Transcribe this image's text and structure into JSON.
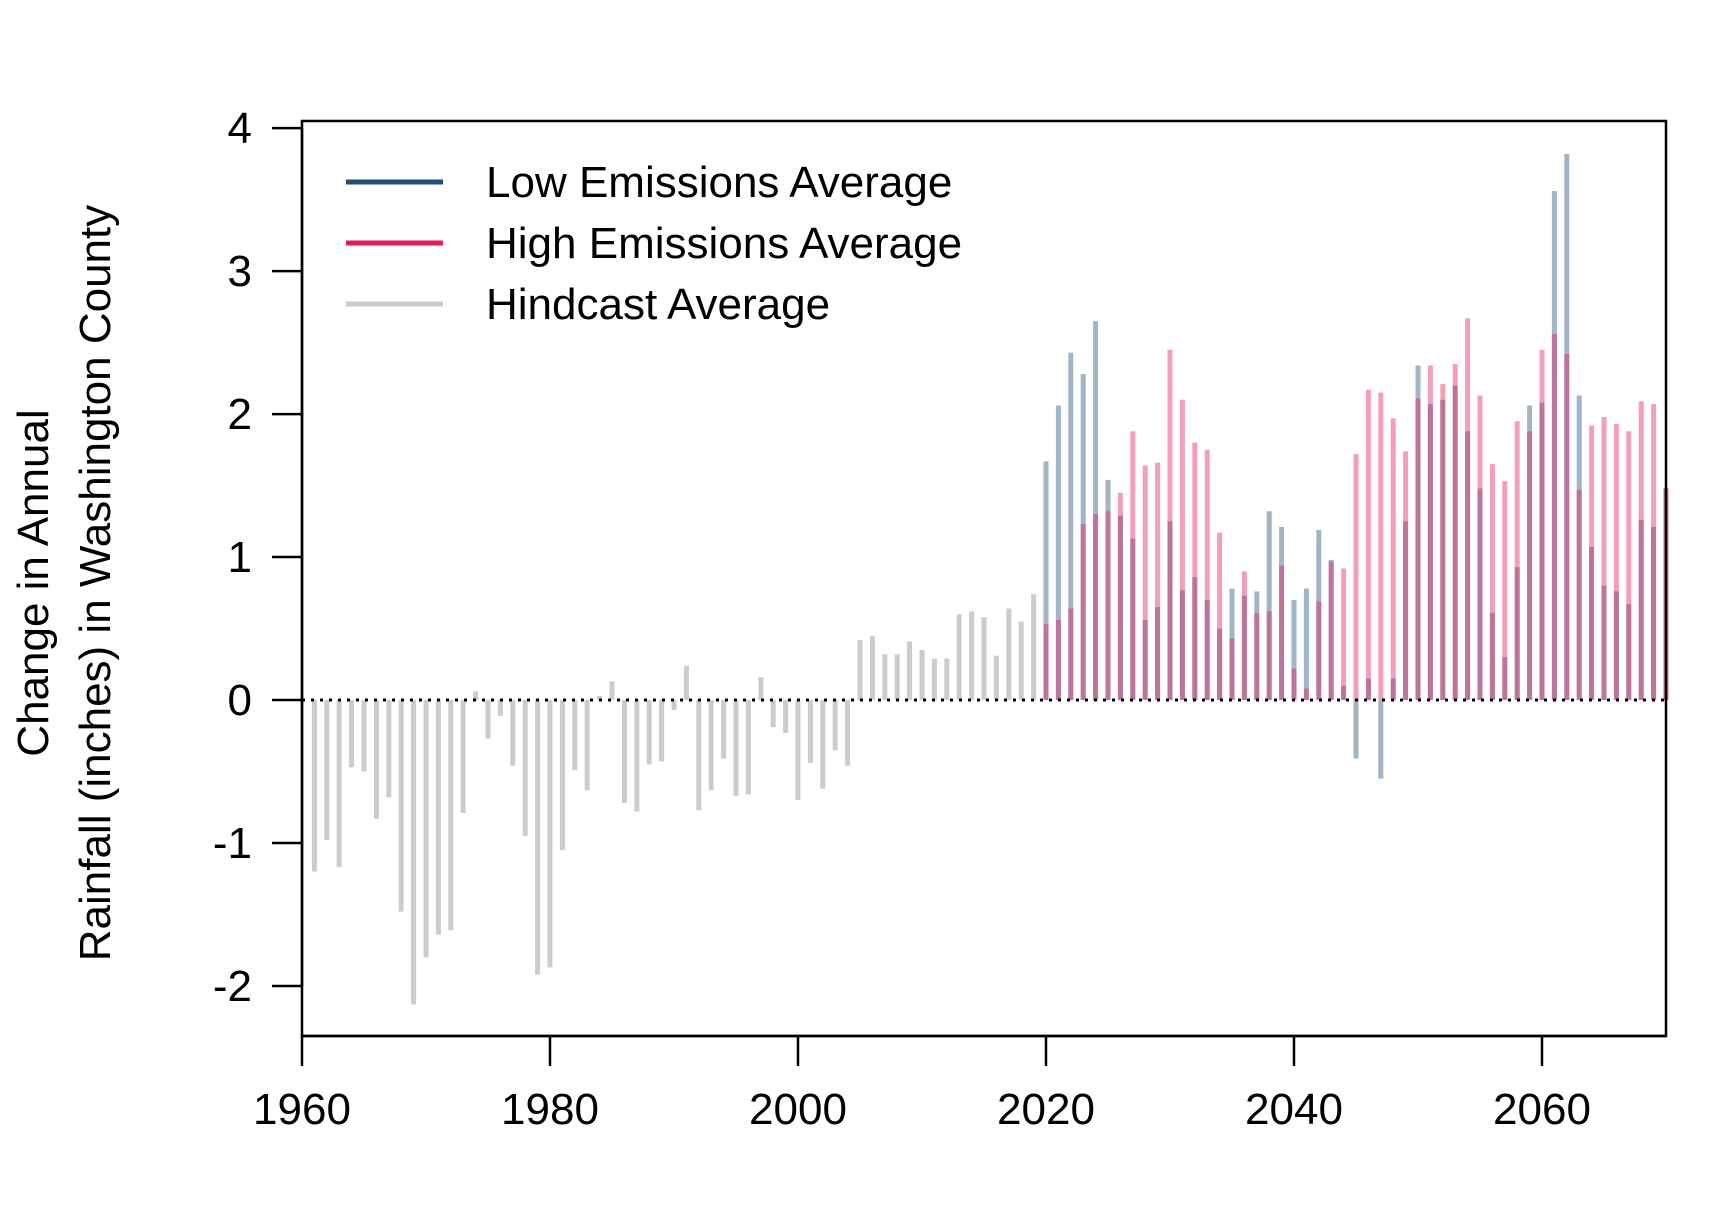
{
  "chart_data": {
    "type": "bar",
    "title": "",
    "xlabel": "",
    "ylabel_lines": [
      "Change in Annual",
      "Rainfall (inches) in Washington County"
    ],
    "xlim": [
      1960,
      2070
    ],
    "ylim": [
      -2.35,
      4.05
    ],
    "x_ticks": [
      1960,
      1980,
      2000,
      2020,
      2040,
      2060
    ],
    "y_ticks": [
      -2,
      -1,
      0,
      1,
      2,
      3,
      4
    ],
    "x_tick_labels": [
      "1960",
      "1980",
      "2000",
      "2020",
      "2040",
      "2060"
    ],
    "y_tick_labels": [
      "-2",
      "-1",
      "0",
      "1",
      "2",
      "3",
      "4"
    ],
    "reference_line": {
      "y": 0,
      "style": "dotted"
    },
    "legend_position": "top-left",
    "legend": [
      {
        "label": "Low Emissions Average",
        "color": "#1f4e79"
      },
      {
        "label": "High Emissions Average",
        "color": "#e8175d"
      },
      {
        "label": "Hindcast Average",
        "color": "#cccccc"
      }
    ],
    "series": [
      {
        "name": "Hindcast Average",
        "color": "#cccccc",
        "years": [
          1961,
          1962,
          1963,
          1964,
          1965,
          1966,
          1967,
          1968,
          1969,
          1970,
          1971,
          1972,
          1973,
          1974,
          1975,
          1976,
          1977,
          1978,
          1979,
          1980,
          1981,
          1982,
          1983,
          1984,
          1985,
          1986,
          1987,
          1988,
          1989,
          1990,
          1991,
          1992,
          1993,
          1994,
          1995,
          1996,
          1997,
          1998,
          1999,
          2000,
          2001,
          2002,
          2003,
          2004,
          2005,
          2006,
          2007,
          2008,
          2009,
          2010,
          2011,
          2012,
          2013,
          2014,
          2015,
          2016,
          2017,
          2018,
          2019
        ],
        "values": [
          -1.2,
          -0.98,
          -1.17,
          -0.47,
          -0.5,
          -0.83,
          -0.68,
          -1.48,
          -2.13,
          -1.8,
          -1.64,
          -1.61,
          -0.79,
          0.06,
          -0.27,
          -0.11,
          -0.46,
          -0.95,
          -1.92,
          -1.87,
          -1.05,
          -0.49,
          -0.63,
          0.03,
          0.13,
          -0.72,
          -0.78,
          -0.45,
          -0.43,
          -0.07,
          0.24,
          -0.77,
          -0.63,
          -0.41,
          -0.67,
          -0.66,
          0.16,
          -0.19,
          -0.23,
          -0.7,
          -0.44,
          -0.62,
          -0.35,
          -0.46,
          0.42,
          0.45,
          0.32,
          0.32,
          0.41,
          0.35,
          0.29,
          0.29,
          0.6,
          0.62,
          0.58,
          0.31,
          0.64,
          0.55,
          0.74
        ]
      },
      {
        "name": "Low Emissions Average",
        "color": "#1f4e79",
        "years": [
          2020,
          2021,
          2022,
          2023,
          2024,
          2025,
          2026,
          2027,
          2028,
          2029,
          2030,
          2031,
          2032,
          2033,
          2034,
          2035,
          2036,
          2037,
          2038,
          2039,
          2040,
          2041,
          2042,
          2043,
          2044,
          2045,
          2046,
          2047,
          2048,
          2049,
          2050,
          2051,
          2052,
          2053,
          2054,
          2055,
          2056,
          2057,
          2058,
          2059,
          2060,
          2061,
          2062,
          2063,
          2064,
          2065,
          2066,
          2067,
          2068,
          2069,
          2070
        ],
        "values": [
          1.67,
          2.06,
          2.43,
          2.28,
          2.65,
          1.54,
          1.29,
          1.13,
          0.56,
          0.65,
          1.25,
          0.77,
          0.86,
          0.7,
          0.5,
          0.78,
          0.73,
          0.76,
          1.32,
          1.21,
          0.7,
          0.78,
          1.19,
          0.98,
          0.1,
          -0.41,
          0.15,
          -0.55,
          0.15,
          1.25,
          2.34,
          2.07,
          2.1,
          2.2,
          1.88,
          1.48,
          0.61,
          0.3,
          0.93,
          2.06,
          2.08,
          3.56,
          3.82,
          2.13,
          1.07,
          0.8,
          0.76,
          0.67,
          1.26,
          1.21,
          1.48
        ]
      },
      {
        "name": "High Emissions Average",
        "color": "#e8175d",
        "years": [
          2020,
          2021,
          2022,
          2023,
          2024,
          2025,
          2026,
          2027,
          2028,
          2029,
          2030,
          2031,
          2032,
          2033,
          2034,
          2035,
          2036,
          2037,
          2038,
          2039,
          2040,
          2041,
          2042,
          2043,
          2044,
          2045,
          2046,
          2047,
          2048,
          2049,
          2050,
          2051,
          2052,
          2053,
          2054,
          2055,
          2056,
          2057,
          2058,
          2059,
          2060,
          2061,
          2062,
          2063,
          2064,
          2065,
          2066,
          2067,
          2068,
          2069,
          2070
        ],
        "values": [
          0.53,
          0.56,
          0.64,
          1.23,
          1.3,
          1.32,
          1.45,
          1.88,
          1.64,
          1.66,
          2.45,
          2.1,
          1.8,
          1.75,
          1.17,
          0.43,
          0.9,
          0.61,
          0.62,
          0.94,
          0.22,
          0.08,
          0.69,
          0.97,
          0.92,
          1.72,
          2.17,
          2.15,
          1.97,
          1.74,
          2.11,
          2.34,
          2.21,
          2.35,
          2.67,
          2.13,
          1.65,
          1.53,
          1.95,
          1.88,
          2.45,
          2.56,
          2.42,
          1.47,
          1.92,
          1.98,
          1.93,
          1.88,
          2.09,
          2.07,
          1.48
        ]
      }
    ]
  }
}
